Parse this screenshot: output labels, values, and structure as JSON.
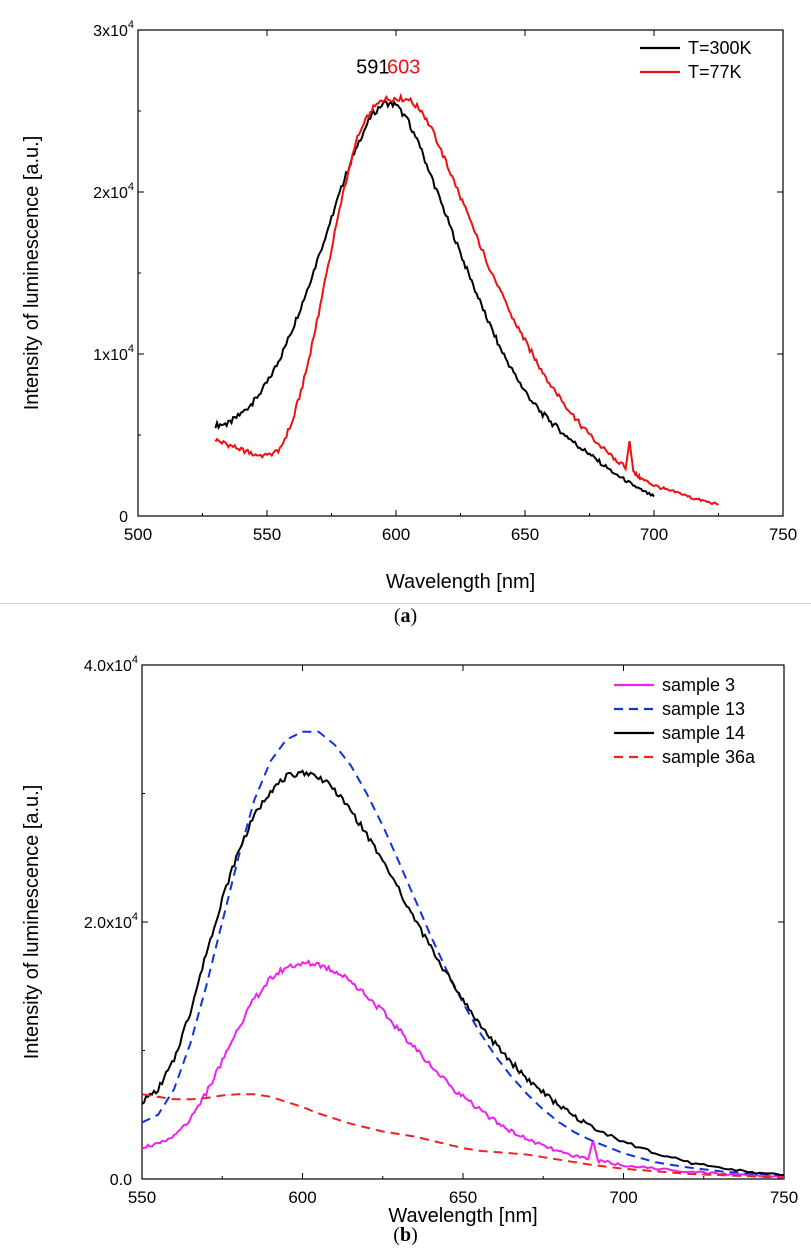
{
  "captions": {
    "a_letter": "a",
    "b_letter": "b"
  },
  "chart_data": [
    {
      "type": "line",
      "xlabel": "Wavelength [nm]",
      "ylabel": "Intensity of luminescence [a.u.]",
      "xlim": [
        500,
        750
      ],
      "ylim": [
        0,
        30000
      ],
      "xticks": [
        "500",
        "550",
        "600",
        "650",
        "700",
        "750"
      ],
      "yticks": [
        {
          "value": 0,
          "mant": "0",
          "exp": ""
        },
        {
          "value": 10000,
          "mant": "1x10",
          "exp": "4"
        },
        {
          "value": 20000,
          "mant": "2x10",
          "exp": "4"
        },
        {
          "value": 30000,
          "mant": "3x10",
          "exp": "4"
        }
      ],
      "legend_position": "top-right",
      "annotations": [
        {
          "text": "591",
          "x": 591,
          "y": 27300,
          "color": "#000000"
        },
        {
          "text": "603",
          "x": 603,
          "y": 27300,
          "color": "#ee1111"
        }
      ],
      "series": [
        {
          "name": "T=300K",
          "color": "#000000",
          "dash": "solid",
          "x": [
            530,
            535,
            540,
            545,
            550,
            555,
            560,
            565,
            570,
            575,
            580,
            585,
            590,
            595,
            600,
            605,
            610,
            615,
            620,
            625,
            630,
            635,
            640,
            645,
            650,
            655,
            660,
            665,
            670,
            675,
            680,
            685,
            690,
            695,
            700
          ],
          "y": [
            5600,
            5700,
            6300,
            7100,
            8200,
            9700,
            11600,
            13700,
            16000,
            18400,
            20800,
            22900,
            24600,
            25500,
            25400,
            24300,
            22500,
            20400,
            18300,
            16200,
            14200,
            12300,
            10500,
            9000,
            7700,
            6600,
            5800,
            5100,
            4400,
            3800,
            3200,
            2600,
            2100,
            1600,
            1200
          ]
        },
        {
          "name": "T=77K",
          "color": "#ee1111",
          "dash": "solid",
          "x": [
            530,
            535,
            540,
            545,
            550,
            555,
            560,
            565,
            570,
            575,
            580,
            585,
            590,
            595,
            600,
            605,
            610,
            615,
            620,
            625,
            630,
            635,
            640,
            645,
            650,
            655,
            660,
            665,
            670,
            675,
            680,
            685,
            689,
            690.5,
            692,
            695,
            700,
            705,
            710,
            715,
            720,
            725
          ],
          "y": [
            4700,
            4400,
            4100,
            3800,
            3700,
            4100,
            5900,
            8800,
            12500,
            16500,
            20300,
            23300,
            25000,
            25700,
            25800,
            25700,
            25000,
            23500,
            21600,
            19700,
            17700,
            15800,
            14000,
            12300,
            10800,
            9400,
            8100,
            7000,
            5900,
            5000,
            4200,
            3500,
            3000,
            4700,
            2700,
            2300,
            1900,
            1600,
            1400,
            1100,
            900,
            700
          ]
        }
      ]
    },
    {
      "type": "line",
      "xlabel": "Wavelength [nm]",
      "ylabel": "Intensity of luminescence [a.u.]",
      "xlim": [
        550,
        750
      ],
      "ylim": [
        0,
        40000
      ],
      "xticks": [
        "550",
        "600",
        "650",
        "700",
        "750"
      ],
      "yticks": [
        {
          "value": 0,
          "mant": "0.0",
          "exp": ""
        },
        {
          "value": 20000,
          "mant": "2.0x10",
          "exp": "4"
        },
        {
          "value": 40000,
          "mant": "4.0x10",
          "exp": "4"
        }
      ],
      "legend_position": "top-right",
      "annotations": [],
      "series": [
        {
          "name": "sample  3",
          "color": "#ee22ee",
          "dash": "solid",
          "x": [
            550,
            555,
            560,
            565,
            570,
            575,
            580,
            585,
            590,
            595,
            600,
            605,
            610,
            615,
            620,
            625,
            630,
            635,
            640,
            645,
            650,
            655,
            660,
            665,
            670,
            675,
            680,
            685,
            689,
            690.5,
            692,
            695,
            700,
            710,
            720,
            730,
            740,
            750
          ],
          "y": [
            2500,
            2700,
            3300,
            4600,
            6700,
            9200,
            11800,
            14000,
            15600,
            16500,
            16800,
            16700,
            16200,
            15400,
            14300,
            13000,
            11600,
            10200,
            8800,
            7500,
            6400,
            5400,
            4500,
            3700,
            3100,
            2600,
            2100,
            1800,
            1600,
            3000,
            1400,
            1300,
            1100,
            800,
            600,
            400,
            300,
            200
          ]
        },
        {
          "name": "sample 13",
          "color": "#1133dd",
          "dash": "dashed",
          "x": [
            550,
            555,
            560,
            565,
            570,
            575,
            580,
            585,
            590,
            595,
            600,
            605,
            610,
            615,
            620,
            625,
            630,
            635,
            640,
            645,
            650,
            655,
            660,
            665,
            670,
            675,
            680,
            685,
            690,
            700,
            710,
            720,
            730,
            740,
            750
          ],
          "y": [
            4400,
            5000,
            7000,
            10500,
            15000,
            20000,
            25000,
            29500,
            32500,
            34200,
            34800,
            34800,
            33800,
            32200,
            30000,
            27500,
            24700,
            21800,
            18900,
            16200,
            13700,
            11500,
            9600,
            8000,
            6600,
            5400,
            4400,
            3600,
            3000,
            2000,
            1300,
            900,
            600,
            400,
            300
          ]
        },
        {
          "name": "sample 14",
          "color": "#000000",
          "dash": "solid",
          "x": [
            550,
            555,
            560,
            565,
            570,
            575,
            580,
            585,
            590,
            595,
            600,
            605,
            610,
            615,
            620,
            625,
            630,
            635,
            640,
            645,
            650,
            655,
            660,
            665,
            670,
            675,
            680,
            685,
            690,
            700,
            710,
            720,
            730,
            740,
            750
          ],
          "y": [
            6000,
            7000,
            9300,
            13000,
            17500,
            21800,
            25500,
            28300,
            30200,
            31300,
            31700,
            31300,
            30300,
            28700,
            26800,
            24700,
            22500,
            20200,
            18000,
            15900,
            13900,
            12100,
            10500,
            9100,
            7800,
            6700,
            5700,
            4800,
            4100,
            2900,
            2000,
            1300,
            900,
            500,
            300
          ]
        },
        {
          "name": "sample 36a",
          "color": "#ee2222",
          "dash": "dashed",
          "x": [
            550,
            555,
            560,
            565,
            570,
            575,
            580,
            585,
            590,
            595,
            600,
            605,
            610,
            615,
            620,
            625,
            630,
            635,
            640,
            645,
            650,
            655,
            660,
            665,
            670,
            675,
            680,
            690,
            700,
            710,
            720,
            730,
            740,
            750
          ],
          "y": [
            6600,
            6400,
            6200,
            6200,
            6300,
            6500,
            6600,
            6600,
            6400,
            6000,
            5600,
            5100,
            4700,
            4300,
            4000,
            3700,
            3500,
            3300,
            3000,
            2700,
            2400,
            2200,
            2100,
            2000,
            1900,
            1700,
            1500,
            1100,
            800,
            600,
            400,
            300,
            200,
            100
          ]
        }
      ]
    }
  ]
}
